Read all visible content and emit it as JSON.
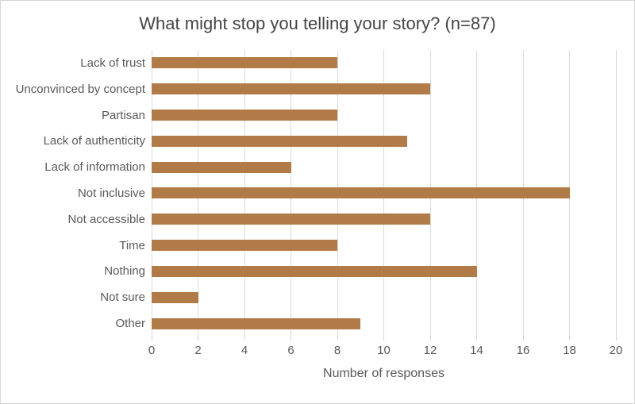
{
  "chart_data": {
    "type": "bar",
    "orientation": "horizontal",
    "title": "What might stop you telling your story? (n=87)",
    "xlabel": "Number of responses",
    "ylabel": "",
    "categories": [
      "Lack of trust",
      "Unconvinced by concept",
      "Partisan",
      "Lack of authenticity",
      "Lack of information",
      "Not inclusive",
      "Not accessible",
      "Time",
      "Nothing",
      "Not sure",
      "Other"
    ],
    "values": [
      8,
      12,
      8,
      11,
      6,
      18,
      12,
      8,
      14,
      2,
      9
    ],
    "xlim": [
      0,
      20
    ],
    "xticks": [
      0,
      2,
      4,
      6,
      8,
      10,
      12,
      14,
      16,
      18,
      20
    ],
    "grid": true,
    "legend": "none",
    "colors": {
      "bar": "#B17B48",
      "gridline": "#DCDCDC",
      "tick_mark": "#D2D2D2",
      "axis_text": "#595959",
      "title_text": "#454545",
      "background": "#FFFFFF",
      "border": "#D6D6D6"
    }
  }
}
